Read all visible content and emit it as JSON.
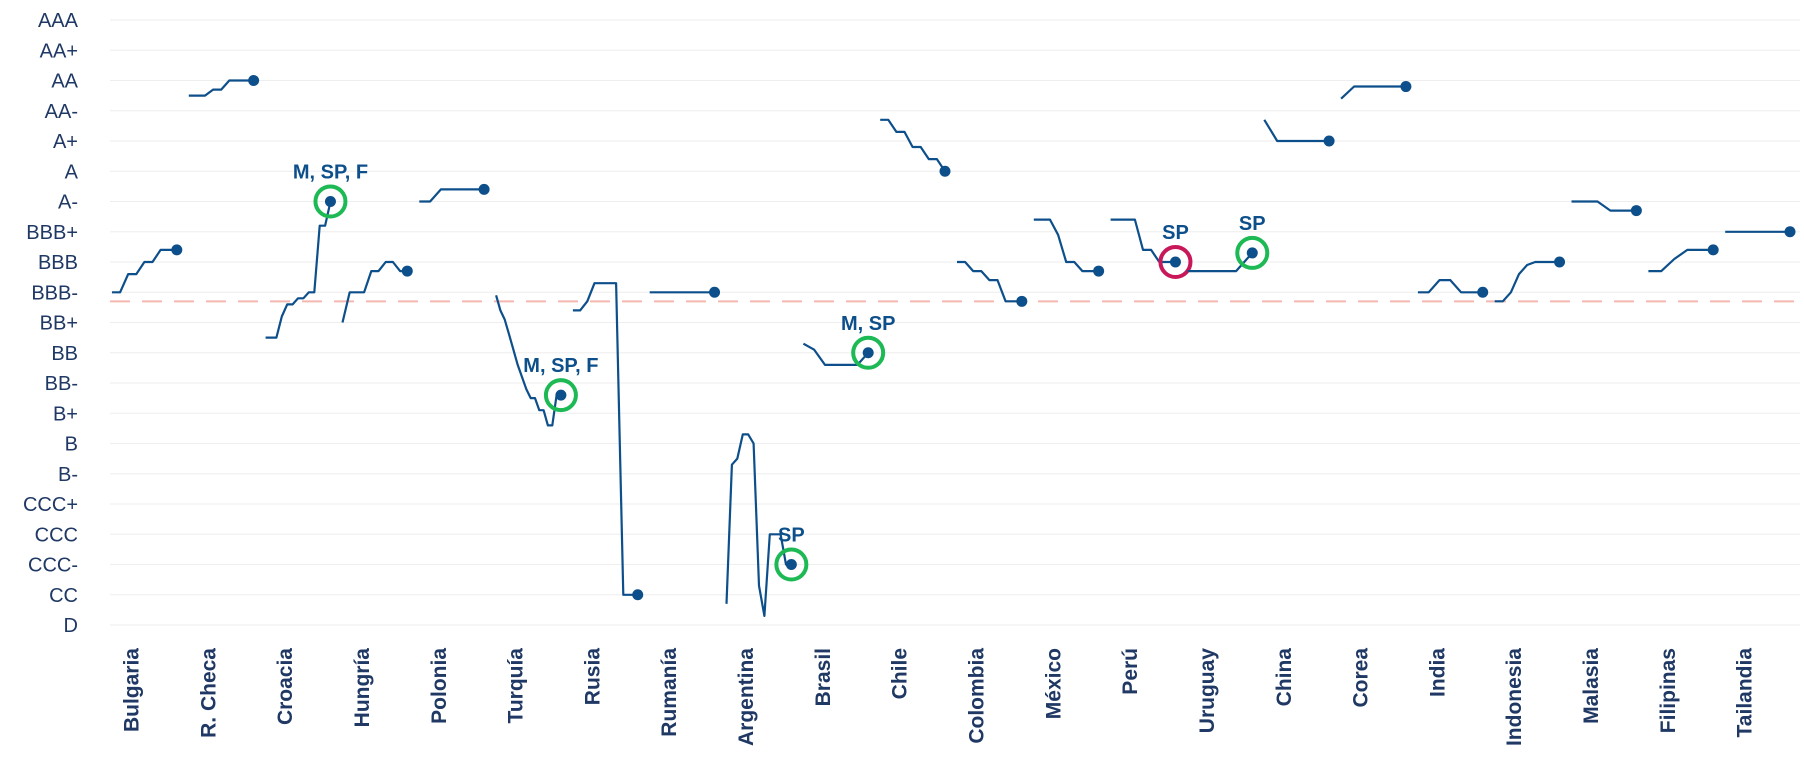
{
  "chart_data": {
    "type": "line",
    "y_categories": [
      "D",
      "CC",
      "CCC-",
      "CCC",
      "CCC+",
      "B-",
      "B",
      "B+",
      "BB-",
      "BB",
      "BB+",
      "BBB-",
      "BBB",
      "BBB+",
      "A-",
      "A",
      "A+",
      "AA-",
      "AA",
      "AA+",
      "AAA"
    ],
    "reference_line_level": 10.7,
    "reference_line_color": "#f4b8b0",
    "line_color": "#0d4f8b",
    "highlight_good_color": "#1db954",
    "highlight_bad_color": "#c8185a",
    "grid": true,
    "countries": [
      {
        "name": "Bulgaria",
        "series": [
          11,
          11,
          11.6,
          11.6,
          12,
          12,
          12.4,
          12.4,
          12.4
        ]
      },
      {
        "name": "R. Checa",
        "series": [
          17.5,
          17.5,
          17.5,
          17.7,
          17.7,
          18,
          18,
          18,
          18
        ]
      },
      {
        "name": "Croacia",
        "series": [
          9.5,
          9.5,
          9.5,
          10.2,
          10.6,
          10.6,
          10.8,
          10.8,
          11,
          11,
          13.2,
          13.2,
          14
        ],
        "annotation": {
          "text": "M, SP, F",
          "status": "good"
        }
      },
      {
        "name": "Hungría",
        "series": [
          10,
          11,
          11,
          11,
          11.7,
          11.7,
          12,
          12,
          11.7,
          11.7
        ]
      },
      {
        "name": "Polonia",
        "series": [
          14,
          14,
          14.4,
          14.4,
          14.4,
          14.4,
          14.4
        ]
      },
      {
        "name": "Turquía",
        "series": [
          10.9,
          10.4,
          10.1,
          9.6,
          9.1,
          8.6,
          8.2,
          7.8,
          7.5,
          7.5,
          7.1,
          7.1,
          6.6,
          6.6,
          7.6,
          7.6
        ],
        "annotation": {
          "text": "M, SP, F",
          "status": "good"
        }
      },
      {
        "name": "Rusia",
        "series": [
          10.4,
          10.4,
          10.7,
          11.3,
          11.3,
          11.3,
          11.3,
          1,
          1,
          1
        ]
      },
      {
        "name": "Rumanía",
        "series": [
          11,
          11,
          11,
          11,
          11,
          11
        ]
      },
      {
        "name": "Argentina",
        "series": [
          0.7,
          5.3,
          5.5,
          6.3,
          6.3,
          6,
          1.3,
          0.3,
          3,
          3,
          3,
          2,
          2
        ],
        "annotation": {
          "text": "SP",
          "status": "good"
        }
      },
      {
        "name": "Brasil",
        "series": [
          9.3,
          9.1,
          8.6,
          8.6,
          8.6,
          8.6,
          9
        ],
        "annotation": {
          "text": "M, SP",
          "status": "good"
        }
      },
      {
        "name": "Chile",
        "series": [
          16.7,
          16.7,
          16.3,
          16.3,
          15.8,
          15.8,
          15.4,
          15.4,
          15
        ]
      },
      {
        "name": "Colombia",
        "series": [
          12,
          12,
          11.7,
          11.7,
          11.4,
          11.4,
          10.7,
          10.7,
          10.7
        ]
      },
      {
        "name": "México",
        "series": [
          13.4,
          13.4,
          13.4,
          12.9,
          12,
          12,
          11.7,
          11.7,
          11.7
        ]
      },
      {
        "name": "Perú",
        "series": [
          13.4,
          13.4,
          13.4,
          13.4,
          12.4,
          12.4,
          12,
          12,
          12
        ],
        "annotation": {
          "text": "SP",
          "status": "bad"
        }
      },
      {
        "name": "Uruguay",
        "series": [
          11.7,
          11.7,
          11.7,
          11.7,
          12.3
        ],
        "annotation": {
          "text": "SP",
          "status": "good"
        }
      },
      {
        "name": "China",
        "series": [
          16.7,
          16,
          16,
          16,
          16,
          16
        ]
      },
      {
        "name": "Corea",
        "series": [
          17.4,
          17.8,
          17.8,
          17.8,
          17.8,
          17.8
        ]
      },
      {
        "name": "India",
        "series": [
          11,
          11,
          11.4,
          11.4,
          11,
          11,
          11
        ]
      },
      {
        "name": "Indonesia",
        "series": [
          10.7,
          10.7,
          11,
          11.6,
          11.9,
          12,
          12,
          12,
          12
        ]
      },
      {
        "name": "Malasia",
        "series": [
          14,
          14,
          14,
          13.7,
          13.7,
          13.7
        ]
      },
      {
        "name": "Filipinas",
        "series": [
          11.7,
          11.7,
          12.1,
          12.4,
          12.4,
          12.4
        ]
      },
      {
        "name": "Tailandia",
        "series": [
          13,
          13,
          13,
          13,
          13,
          13
        ]
      }
    ]
  }
}
